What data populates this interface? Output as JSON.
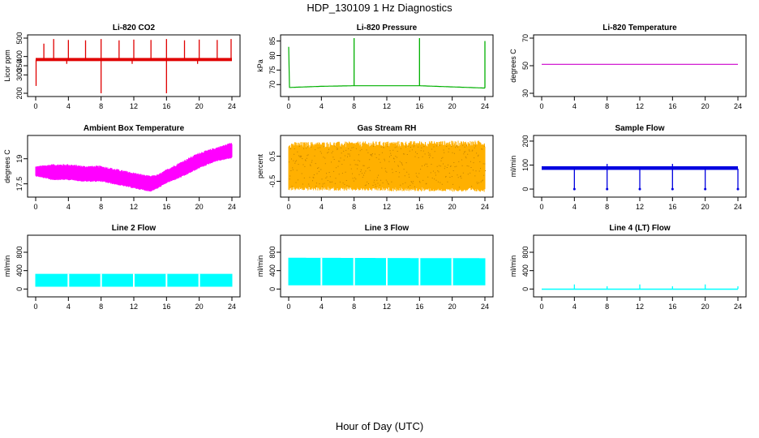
{
  "figure": {
    "title": "HDP_130109  1 Hz Diagnostics",
    "xlabel": "Hour of Day (UTC)"
  },
  "chart_data": [
    {
      "type": "line",
      "title": "Li-820 CO2",
      "ylabel": "Licor ppm",
      "color": "#e00000",
      "xlim": [
        0,
        24
      ],
      "ylim": [
        200,
        500
      ],
      "xticks": [
        0,
        4,
        8,
        12,
        16,
        20,
        24
      ],
      "yticks": [
        200,
        300,
        350,
        400,
        500
      ],
      "baseline": 383,
      "band": [
        375,
        392
      ],
      "spikes_up": [
        [
          1,
          470
        ],
        [
          2.2,
          495
        ],
        [
          4,
          490
        ],
        [
          6.1,
          488
        ],
        [
          8,
          495
        ],
        [
          10.2,
          488
        ],
        [
          12,
          492
        ],
        [
          14.1,
          490
        ],
        [
          16,
          495
        ],
        [
          18.2,
          488
        ],
        [
          20,
          492
        ],
        [
          22.2,
          490
        ],
        [
          23.9,
          495
        ]
      ],
      "spikes_down": [
        [
          0.05,
          240
        ],
        [
          8,
          200
        ],
        [
          16,
          200
        ],
        [
          3.8,
          360
        ],
        [
          11.8,
          360
        ],
        [
          19.8,
          360
        ]
      ]
    },
    {
      "type": "line",
      "title": "Li-820 Pressure",
      "ylabel": "kPa",
      "color": "#00b000",
      "xlim": [
        0,
        24
      ],
      "ylim": [
        67,
        86
      ],
      "xticks": [
        0,
        4,
        8,
        12,
        16,
        20,
        24
      ],
      "yticks": [
        70,
        75,
        80,
        85
      ],
      "profile": [
        [
          0,
          83
        ],
        [
          0.1,
          69
        ],
        [
          4,
          69.4
        ],
        [
          8,
          69.6
        ],
        [
          12,
          69.6
        ],
        [
          16,
          69.6
        ],
        [
          20,
          69.2
        ],
        [
          24,
          68.8
        ]
      ],
      "spikes_up": [
        [
          8,
          86
        ],
        [
          16,
          86
        ],
        [
          24,
          85
        ]
      ]
    },
    {
      "type": "line",
      "title": "Li-820 Temperature",
      "ylabel": "degrees C",
      "color": "#cc00cc",
      "xlim": [
        0,
        24
      ],
      "ylim": [
        30,
        70
      ],
      "xticks": [
        0,
        4,
        8,
        12,
        16,
        20,
        24
      ],
      "yticks": [
        30,
        50,
        70
      ],
      "profile": [
        [
          0,
          51
        ],
        [
          24,
          51
        ]
      ]
    },
    {
      "type": "area",
      "title": "Ambient Box Temperature",
      "ylabel": "degrees C",
      "color": "#ff00ff",
      "xlim": [
        0,
        24
      ],
      "ylim": [
        16.9,
        20.2
      ],
      "xticks": [
        0,
        4,
        8,
        12,
        16,
        20,
        24
      ],
      "yticks": [
        17.5,
        19.0
      ],
      "upper": [
        [
          0,
          18.5
        ],
        [
          2,
          18.6
        ],
        [
          4,
          18.6
        ],
        [
          6,
          18.5
        ],
        [
          8,
          18.5
        ],
        [
          10,
          18.3
        ],
        [
          12,
          18.1
        ],
        [
          14,
          17.9
        ],
        [
          15,
          18.0
        ],
        [
          16,
          18.3
        ],
        [
          18,
          18.8
        ],
        [
          20,
          19.3
        ],
        [
          22,
          19.6
        ],
        [
          24,
          19.9
        ]
      ],
      "lower": [
        [
          0,
          18.0
        ],
        [
          2,
          17.8
        ],
        [
          4,
          17.8
        ],
        [
          6,
          17.7
        ],
        [
          8,
          17.7
        ],
        [
          10,
          17.5
        ],
        [
          12,
          17.3
        ],
        [
          14,
          17.1
        ],
        [
          15,
          17.3
        ],
        [
          16,
          17.6
        ],
        [
          18,
          18.0
        ],
        [
          20,
          18.5
        ],
        [
          22,
          18.9
        ],
        [
          24,
          19.1
        ]
      ]
    },
    {
      "type": "area",
      "title": "Gas Stream RH",
      "ylabel": "percent",
      "color": "#ffb000",
      "xlim": [
        0,
        24
      ],
      "ylim": [
        -1.0,
        1.2
      ],
      "xticks": [
        0,
        4,
        8,
        12,
        16,
        20,
        24
      ],
      "yticks": [
        -0.5,
        0.5
      ],
      "upper": [
        [
          0,
          0.9
        ],
        [
          24,
          0.95
        ]
      ],
      "lower": [
        [
          0,
          -0.7
        ],
        [
          24,
          -0.75
        ]
      ]
    },
    {
      "type": "line",
      "title": "Sample Flow",
      "ylabel": "ml/min",
      "color": "#0000e0",
      "xlim": [
        0,
        24
      ],
      "ylim": [
        -20,
        210
      ],
      "xticks": [
        0,
        4,
        8,
        12,
        16,
        20,
        24
      ],
      "yticks": [
        0,
        100,
        200
      ],
      "baseline": 85,
      "band": [
        80,
        95
      ],
      "spikes_down": [
        [
          4,
          0
        ],
        [
          8,
          0
        ],
        [
          12,
          0
        ],
        [
          16,
          0
        ],
        [
          20,
          0
        ],
        [
          24,
          0
        ]
      ],
      "spikes_up": [
        [
          8,
          105
        ],
        [
          16,
          105
        ]
      ]
    },
    {
      "type": "area",
      "title": "Line 2 Flow",
      "ylabel": "ml/min",
      "color": "#00ffff",
      "xlim": [
        0,
        24
      ],
      "ylim": [
        -100,
        1100
      ],
      "xticks": [
        0,
        4,
        8,
        12,
        16,
        20,
        24
      ],
      "yticks": [
        0,
        400,
        800
      ],
      "upper": [
        [
          0,
          330
        ],
        [
          24,
          330
        ]
      ],
      "lower": [
        [
          0,
          50
        ],
        [
          24,
          50
        ]
      ],
      "gaps": [
        4,
        8,
        12,
        16,
        20
      ]
    },
    {
      "type": "area",
      "title": "Line 3 Flow",
      "ylabel": "ml/min",
      "color": "#00ffff",
      "xlim": [
        0,
        24
      ],
      "ylim": [
        -100,
        1100
      ],
      "xticks": [
        0,
        4,
        8,
        12,
        16,
        20,
        24
      ],
      "yticks": [
        0,
        400,
        800
      ],
      "upper": [
        [
          0,
          680
        ],
        [
          24,
          670
        ]
      ],
      "lower": [
        [
          0,
          80
        ],
        [
          24,
          80
        ]
      ],
      "gaps": [
        4,
        8,
        12,
        16,
        20
      ]
    },
    {
      "type": "line",
      "title": "Line 4 (LT) Flow",
      "ylabel": "ml/min",
      "color": "#00ffff",
      "xlim": [
        0,
        24
      ],
      "ylim": [
        -100,
        1100
      ],
      "xticks": [
        0,
        4,
        8,
        12,
        16,
        20,
        24
      ],
      "yticks": [
        0,
        400,
        800
      ],
      "baseline": 0,
      "band": [
        -5,
        10
      ],
      "spikes_up": [
        [
          4,
          100
        ],
        [
          8,
          60
        ],
        [
          12,
          100
        ],
        [
          16,
          60
        ],
        [
          20,
          100
        ],
        [
          24,
          60
        ]
      ]
    }
  ]
}
